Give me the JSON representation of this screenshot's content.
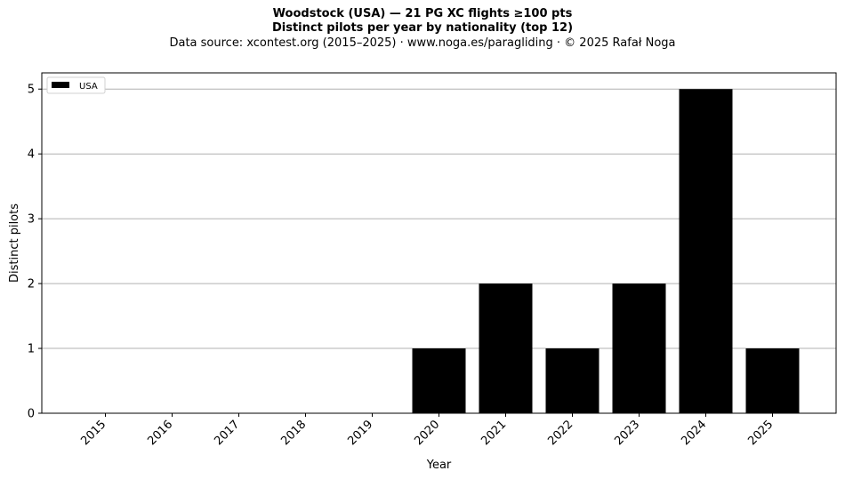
{
  "chart_data": {
    "type": "bar",
    "title_lines": [
      "Woodstock (USA)  —  21 PG XC flights ≥100 pts",
      "Distinct pilots per year by nationality (top 12)"
    ],
    "subtitle": "Data source: xcontest.org (2015–2025)  ·  www.noga.es/paragliding  ·  © 2025 Rafał Noga",
    "xlabel": "Year",
    "ylabel": "Distinct pilots",
    "categories": [
      "2015",
      "2016",
      "2017",
      "2018",
      "2019",
      "2020",
      "2021",
      "2022",
      "2023",
      "2024",
      "2025"
    ],
    "series": [
      {
        "name": "USA",
        "values": [
          0,
          0,
          0,
          0,
          0,
          1,
          2,
          1,
          2,
          5,
          1
        ],
        "color": "#000000"
      }
    ],
    "ylim": [
      0,
      5.25
    ],
    "yticks": [
      0,
      1,
      2,
      3,
      4,
      5
    ],
    "grid": "horizontal",
    "legend_position": "top-left"
  }
}
